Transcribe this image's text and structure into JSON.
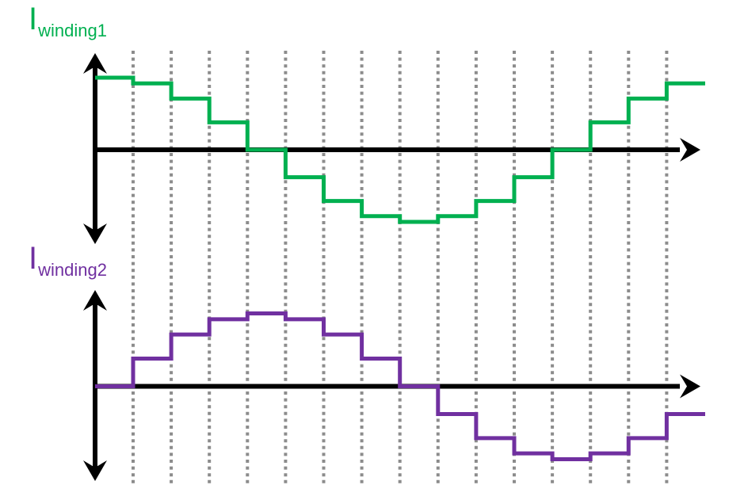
{
  "figure": {
    "background": "#FFFFFF",
    "axis_color": "#000000",
    "gridline_color": "#8C8C8C",
    "description": "Two stacked step waveforms of winding currents over one switching period; 16 equal steps with shared vertical dotted gridlines at every step boundary; axes have no ticks or numeric labels"
  },
  "chart_data": [
    {
      "type": "line",
      "subtype": "staircase-step",
      "title": "Iwinding1",
      "label": {
        "base": "I",
        "subscript": "winding1"
      },
      "color": "#00B050",
      "x_step_index": [
        0,
        1,
        2,
        3,
        4,
        5,
        6,
        7,
        8,
        9,
        10,
        11,
        12,
        13,
        14,
        15
      ],
      "values_normalized": [
        1,
        0.92,
        0.71,
        0.38,
        0,
        -0.38,
        -0.71,
        -0.92,
        -1,
        -0.92,
        -0.71,
        -0.38,
        0,
        0.38,
        0.71,
        0.92
      ],
      "shape": "staircase cosine, one full period in 16 equal-width steps, starts at positive peak",
      "ylim": [
        -1.3,
        1.3
      ],
      "axes": {
        "y": "vertical double-arrow axis, no ticks",
        "x": "horizontal right-arrow axis at zero level, no ticks"
      },
      "grid": "15 vertical dotted gridlines at step boundaries, shared with winding2 chart",
      "legend": "none"
    },
    {
      "type": "line",
      "subtype": "staircase-step",
      "title": "Iwinding2",
      "label": {
        "base": "I",
        "subscript": "winding2"
      },
      "color": "#7030A0",
      "x_step_index": [
        0,
        1,
        2,
        3,
        4,
        5,
        6,
        7,
        8,
        9,
        10,
        11,
        12,
        13,
        14,
        15
      ],
      "values_normalized": [
        0,
        0.38,
        0.71,
        0.92,
        1,
        0.92,
        0.71,
        0.38,
        0,
        -0.38,
        -0.71,
        -0.92,
        -1,
        -0.92,
        -0.71,
        -0.38
      ],
      "shape": "staircase sine, one full period in 16 equal-width steps, lags winding1 by 90 degrees",
      "ylim": [
        -1.3,
        1.3
      ],
      "axes": {
        "y": "vertical double-arrow axis, no ticks",
        "x": "horizontal right-arrow axis at zero level, no ticks"
      },
      "grid": "15 vertical dotted gridlines at step boundaries, shared with winding1 chart",
      "legend": "none"
    }
  ]
}
